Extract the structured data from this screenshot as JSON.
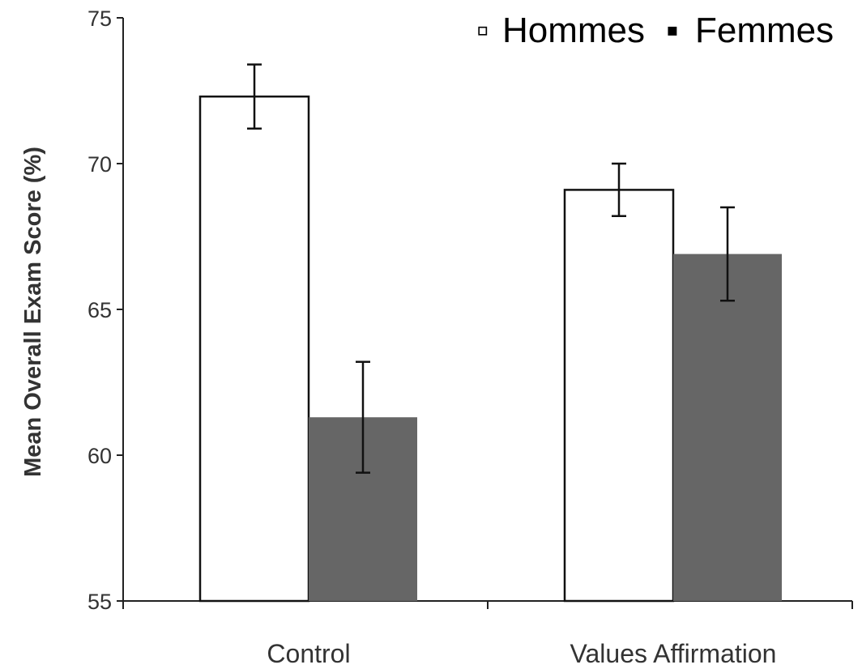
{
  "chart_data": {
    "type": "bar",
    "categories": [
      "Control",
      "Values Affirmation"
    ],
    "series": [
      {
        "name": "Hommes",
        "values": [
          72.3,
          69.1
        ],
        "errors": [
          1.1,
          0.9
        ],
        "color": "#ffffff"
      },
      {
        "name": "Femmes",
        "values": [
          61.3,
          66.9
        ],
        "errors": [
          1.9,
          1.6
        ],
        "color": "#666666"
      }
    ],
    "ylabel": "Mean Overall Exam Score (%)",
    "xlabel": "",
    "ylim": [
      55,
      75
    ],
    "yticks": [
      "55",
      "60",
      "65",
      "70",
      "75"
    ],
    "grid": false,
    "legend_position": "top-right",
    "legend_markers": [
      "▫",
      "▪"
    ]
  }
}
